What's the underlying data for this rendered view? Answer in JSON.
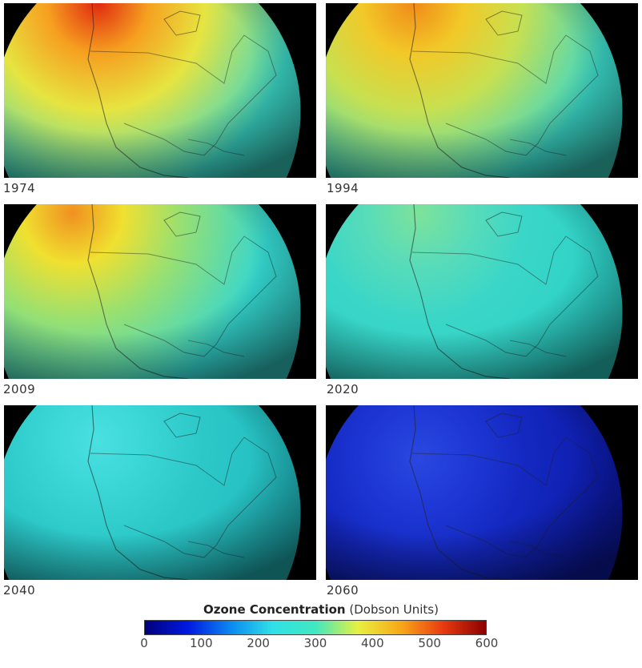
{
  "panels": [
    {
      "year": "1974",
      "ozone_level": "high",
      "hotspot": [
        0.3,
        0.0
      ],
      "core": "#e02a10",
      "mid": "#f6a020",
      "outer": "#e6e440",
      "base": "#3ad7c8"
    },
    {
      "year": "1994",
      "ozone_level": "elevated",
      "hotspot": [
        0.28,
        0.0
      ],
      "core": "#f08a18",
      "mid": "#f2c828",
      "outer": "#c8e050",
      "base": "#3ad7c8"
    },
    {
      "year": "2009",
      "ozone_level": "elevated",
      "hotspot": [
        0.22,
        0.05
      ],
      "core": "#f09020",
      "mid": "#f0e030",
      "outer": "#9ae070",
      "base": "#34d6d0"
    },
    {
      "year": "2020",
      "ozone_level": "moderate",
      "hotspot": [
        0.3,
        0.05
      ],
      "core": "#7ee29a",
      "mid": "#5adcb8",
      "outer": "#3ad6c8",
      "base": "#2dd2c8"
    },
    {
      "year": "2040",
      "ozone_level": "moderate-low",
      "hotspot": [
        0.3,
        0.2
      ],
      "core": "#4ae0e0",
      "mid": "#3ad6d6",
      "outer": "#2cc8c8",
      "base": "#22bcc0"
    },
    {
      "year": "2060",
      "ozone_level": "low",
      "hotspot": [
        0.3,
        0.3
      ],
      "core": "#2a48e0",
      "mid": "#1e38d6",
      "outer": "#1428c0",
      "base": "#0c1aa8"
    }
  ],
  "legend": {
    "title_bold": "Ozone Concentration",
    "title_unit": "(Dobson Units)",
    "ticks": [
      "0",
      "100",
      "200",
      "300",
      "400",
      "500",
      "600"
    ],
    "range": [
      0,
      600
    ],
    "gradient": [
      "#00007a",
      "#0018e0",
      "#0a88f0",
      "#30e0e8",
      "#40e8c0",
      "#e8f040",
      "#f8a818",
      "#e83a10",
      "#8a0000"
    ]
  }
}
